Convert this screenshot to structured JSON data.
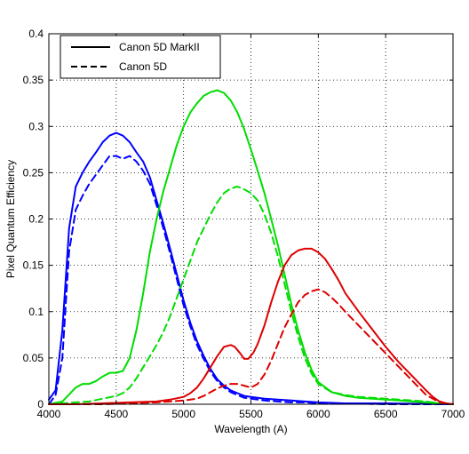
{
  "chart_data": {
    "type": "line",
    "title": "",
    "xlabel": "Wavelength (A)",
    "ylabel": "Pixel Quantum Efficiency",
    "xlim": [
      4000,
      7000
    ],
    "ylim": [
      0,
      0.4
    ],
    "xticks": [
      4000,
      4500,
      5000,
      5500,
      6000,
      6500,
      7000
    ],
    "xtick_labels": [
      "4000",
      "4500",
      "5000",
      "5500",
      "6000",
      "6500",
      "7000"
    ],
    "yticks": [
      0,
      0.05,
      0.1,
      0.15,
      0.2,
      0.25,
      0.3,
      0.35,
      0.4
    ],
    "ytick_labels": [
      "0",
      "0.05",
      "0.1",
      "0.15",
      "0.2",
      "0.25",
      "0.3",
      "0.35",
      "0.4"
    ],
    "grid": true,
    "legend_position": "top-left",
    "legend": [
      {
        "label": "Canon 5D MarkII",
        "style": "solid"
      },
      {
        "label": "Canon 5D",
        "style": "dashed"
      }
    ],
    "series": [
      {
        "camera": "Canon 5D MarkII",
        "channel": "blue",
        "color": "#0000ff",
        "style": "solid",
        "x": [
          4000,
          4050,
          4100,
          4150,
          4200,
          4250,
          4300,
          4350,
          4400,
          4450,
          4500,
          4550,
          4600,
          4650,
          4700,
          4750,
          4800,
          4850,
          4900,
          4950,
          5000,
          5050,
          5100,
          5150,
          5200,
          5250,
          5300,
          5350,
          5400,
          5450,
          5500,
          5600,
          5700,
          5800,
          5900,
          6000,
          6200,
          6500,
          7000
        ],
        "y": [
          0.005,
          0.015,
          0.08,
          0.19,
          0.235,
          0.25,
          0.262,
          0.272,
          0.283,
          0.29,
          0.293,
          0.29,
          0.283,
          0.272,
          0.262,
          0.245,
          0.22,
          0.195,
          0.168,
          0.14,
          0.112,
          0.088,
          0.068,
          0.052,
          0.038,
          0.027,
          0.02,
          0.015,
          0.012,
          0.009,
          0.008,
          0.006,
          0.005,
          0.004,
          0.003,
          0.002,
          0.001,
          0.001,
          0.0
        ]
      },
      {
        "camera": "Canon 5D",
        "channel": "blue",
        "color": "#0000ff",
        "style": "dashed",
        "x": [
          4000,
          4050,
          4100,
          4150,
          4200,
          4250,
          4300,
          4350,
          4400,
          4450,
          4500,
          4550,
          4600,
          4650,
          4700,
          4750,
          4800,
          4850,
          4900,
          4950,
          5000,
          5050,
          5100,
          5150,
          5200,
          5250,
          5300,
          5350,
          5400,
          5450,
          5500,
          5600,
          5700,
          5800,
          5900,
          6000,
          6200,
          6500,
          7000
        ],
        "y": [
          0.0,
          0.01,
          0.05,
          0.165,
          0.21,
          0.225,
          0.238,
          0.248,
          0.258,
          0.268,
          0.268,
          0.265,
          0.268,
          0.262,
          0.252,
          0.238,
          0.215,
          0.19,
          0.163,
          0.135,
          0.107,
          0.084,
          0.064,
          0.049,
          0.035,
          0.025,
          0.018,
          0.013,
          0.01,
          0.007,
          0.006,
          0.004,
          0.003,
          0.002,
          0.002,
          0.001,
          0.001,
          0.0,
          0.0
        ]
      },
      {
        "camera": "Canon 5D MarkII",
        "channel": "green",
        "color": "#00dd00",
        "style": "solid",
        "x": [
          4000,
          4100,
          4200,
          4250,
          4300,
          4350,
          4400,
          4450,
          4500,
          4550,
          4600,
          4650,
          4700,
          4750,
          4800,
          4850,
          4900,
          4950,
          5000,
          5050,
          5100,
          5150,
          5200,
          5250,
          5300,
          5350,
          5400,
          5450,
          5500,
          5550,
          5600,
          5650,
          5700,
          5750,
          5800,
          5850,
          5900,
          5950,
          6000,
          6100,
          6200,
          6300,
          6400,
          6500,
          6600,
          6700,
          6800,
          6900,
          7000
        ],
        "y": [
          0.0,
          0.003,
          0.018,
          0.022,
          0.022,
          0.025,
          0.03,
          0.034,
          0.034,
          0.036,
          0.05,
          0.08,
          0.12,
          0.165,
          0.2,
          0.23,
          0.255,
          0.28,
          0.3,
          0.315,
          0.325,
          0.333,
          0.337,
          0.339,
          0.336,
          0.328,
          0.315,
          0.297,
          0.275,
          0.252,
          0.228,
          0.2,
          0.172,
          0.14,
          0.108,
          0.08,
          0.056,
          0.037,
          0.024,
          0.013,
          0.009,
          0.007,
          0.006,
          0.005,
          0.004,
          0.003,
          0.002,
          0.001,
          0.0
        ]
      },
      {
        "camera": "Canon 5D",
        "channel": "green",
        "color": "#00dd00",
        "style": "dashed",
        "x": [
          4000,
          4100,
          4200,
          4300,
          4400,
          4500,
          4550,
          4600,
          4650,
          4700,
          4750,
          4800,
          4850,
          4900,
          4950,
          5000,
          5050,
          5100,
          5150,
          5200,
          5250,
          5300,
          5350,
          5400,
          5450,
          5500,
          5550,
          5600,
          5650,
          5700,
          5750,
          5800,
          5850,
          5900,
          5950,
          6000,
          6100,
          6200,
          6300,
          6400,
          6500,
          6600,
          6700,
          6800,
          6900,
          7000
        ],
        "y": [
          0.0,
          0.001,
          0.002,
          0.003,
          0.006,
          0.009,
          0.012,
          0.018,
          0.028,
          0.04,
          0.052,
          0.064,
          0.078,
          0.095,
          0.115,
          0.135,
          0.155,
          0.175,
          0.19,
          0.205,
          0.218,
          0.228,
          0.233,
          0.235,
          0.232,
          0.228,
          0.22,
          0.205,
          0.185,
          0.16,
          0.13,
          0.1,
          0.073,
          0.05,
          0.033,
          0.022,
          0.013,
          0.01,
          0.008,
          0.007,
          0.006,
          0.005,
          0.004,
          0.003,
          0.001,
          0.0
        ]
      },
      {
        "camera": "Canon 5D MarkII",
        "channel": "red",
        "color": "#dd0000",
        "style": "solid",
        "x": [
          4000,
          4200,
          4400,
          4600,
          4800,
          4900,
          5000,
          5050,
          5100,
          5150,
          5200,
          5250,
          5300,
          5350,
          5380,
          5420,
          5450,
          5480,
          5520,
          5550,
          5600,
          5650,
          5700,
          5750,
          5800,
          5850,
          5900,
          5950,
          6000,
          6050,
          6100,
          6150,
          6200,
          6300,
          6400,
          6500,
          6600,
          6700,
          6800,
          6850,
          6900,
          6950,
          7000
        ],
        "y": [
          0.0,
          0.0,
          0.001,
          0.002,
          0.003,
          0.005,
          0.008,
          0.012,
          0.018,
          0.028,
          0.04,
          0.052,
          0.062,
          0.064,
          0.062,
          0.055,
          0.049,
          0.049,
          0.056,
          0.065,
          0.085,
          0.11,
          0.132,
          0.15,
          0.161,
          0.166,
          0.168,
          0.168,
          0.164,
          0.157,
          0.146,
          0.134,
          0.12,
          0.1,
          0.081,
          0.062,
          0.045,
          0.03,
          0.015,
          0.008,
          0.003,
          0.001,
          0.0
        ]
      },
      {
        "camera": "Canon 5D",
        "channel": "red",
        "color": "#dd0000",
        "style": "dashed",
        "x": [
          4000,
          4200,
          4400,
          4600,
          4800,
          5000,
          5100,
          5150,
          5200,
          5250,
          5300,
          5350,
          5400,
          5450,
          5500,
          5550,
          5600,
          5650,
          5700,
          5750,
          5800,
          5850,
          5900,
          5950,
          6000,
          6050,
          6100,
          6150,
          6200,
          6300,
          6400,
          6500,
          6600,
          6700,
          6800,
          6900,
          7000
        ],
        "y": [
          0.0,
          0.0,
          0.0,
          0.001,
          0.002,
          0.004,
          0.006,
          0.009,
          0.013,
          0.017,
          0.02,
          0.022,
          0.022,
          0.02,
          0.018,
          0.022,
          0.032,
          0.047,
          0.065,
          0.083,
          0.097,
          0.11,
          0.118,
          0.122,
          0.124,
          0.121,
          0.115,
          0.108,
          0.1,
          0.085,
          0.07,
          0.055,
          0.04,
          0.025,
          0.01,
          0.002,
          0.0
        ]
      }
    ]
  }
}
